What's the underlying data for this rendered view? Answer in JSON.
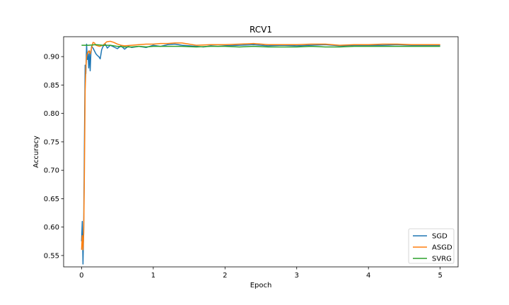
{
  "chart_data": {
    "type": "line",
    "title": "RCV1",
    "xlabel": "Epoch",
    "ylabel": "Accuracy",
    "xlim": [
      -0.25,
      5.25
    ],
    "ylim": [
      0.53,
      0.935
    ],
    "xticks": [
      0,
      1,
      2,
      3,
      4,
      5
    ],
    "yticks": [
      0.55,
      0.6,
      0.65,
      0.7,
      0.75,
      0.8,
      0.85,
      0.9
    ],
    "xtick_labels": [
      "0",
      "1",
      "2",
      "3",
      "4",
      "5"
    ],
    "ytick_labels": [
      "0.55",
      "0.60",
      "0.65",
      "0.70",
      "0.75",
      "0.80",
      "0.85",
      "0.90"
    ],
    "grid": false,
    "legend_position": "lower-right",
    "series": [
      {
        "name": "SGD",
        "color": "#1f77b4",
        "x": [
          0.0,
          0.01,
          0.02,
          0.03,
          0.04,
          0.05,
          0.06,
          0.07,
          0.08,
          0.09,
          0.1,
          0.11,
          0.12,
          0.13,
          0.14,
          0.16,
          0.18,
          0.2,
          0.22,
          0.24,
          0.26,
          0.28,
          0.3,
          0.33,
          0.36,
          0.4,
          0.45,
          0.5,
          0.55,
          0.6,
          0.65,
          0.7,
          0.8,
          0.9,
          1.0,
          1.1,
          1.2,
          1.3,
          1.4,
          1.5,
          1.6,
          1.7,
          1.8,
          1.9,
          2.0,
          2.2,
          2.4,
          2.6,
          2.8,
          3.0,
          3.2,
          3.4,
          3.6,
          3.8,
          4.0,
          4.2,
          4.4,
          4.6,
          4.8,
          5.0
        ],
        "values": [
          0.575,
          0.61,
          0.535,
          0.6,
          0.75,
          0.885,
          0.87,
          0.922,
          0.895,
          0.905,
          0.88,
          0.91,
          0.875,
          0.905,
          0.918,
          0.915,
          0.91,
          0.905,
          0.902,
          0.9,
          0.896,
          0.912,
          0.918,
          0.922,
          0.915,
          0.92,
          0.917,
          0.914,
          0.919,
          0.913,
          0.918,
          0.916,
          0.918,
          0.916,
          0.92,
          0.918,
          0.921,
          0.922,
          0.92,
          0.919,
          0.918,
          0.917,
          0.919,
          0.918,
          0.919,
          0.92,
          0.921,
          0.919,
          0.92,
          0.919,
          0.92,
          0.921,
          0.919,
          0.92,
          0.92,
          0.92,
          0.921,
          0.92,
          0.92,
          0.92
        ]
      },
      {
        "name": "ASGD",
        "color": "#ff7f0e",
        "x": [
          0.0,
          0.01,
          0.02,
          0.03,
          0.04,
          0.05,
          0.06,
          0.07,
          0.08,
          0.1,
          0.12,
          0.14,
          0.16,
          0.18,
          0.2,
          0.25,
          0.3,
          0.35,
          0.4,
          0.45,
          0.5,
          0.55,
          0.6,
          0.7,
          0.8,
          0.9,
          1.0,
          1.1,
          1.2,
          1.3,
          1.4,
          1.5,
          1.6,
          1.8,
          2.0,
          2.2,
          2.4,
          2.6,
          2.8,
          3.0,
          3.2,
          3.4,
          3.6,
          3.8,
          4.0,
          4.2,
          4.4,
          4.6,
          4.8,
          5.0
        ],
        "values": [
          0.56,
          0.585,
          0.56,
          0.59,
          0.7,
          0.84,
          0.88,
          0.9,
          0.905,
          0.91,
          0.905,
          0.915,
          0.925,
          0.924,
          0.92,
          0.918,
          0.92,
          0.926,
          0.927,
          0.925,
          0.922,
          0.92,
          0.919,
          0.92,
          0.921,
          0.922,
          0.922,
          0.923,
          0.923,
          0.924,
          0.924,
          0.922,
          0.92,
          0.921,
          0.921,
          0.922,
          0.923,
          0.921,
          0.921,
          0.921,
          0.922,
          0.922,
          0.92,
          0.921,
          0.921,
          0.922,
          0.922,
          0.921,
          0.921,
          0.921
        ]
      },
      {
        "name": "SVRG",
        "color": "#2ca02c",
        "x": [
          0.0,
          0.05,
          0.1,
          0.2,
          0.3,
          0.4,
          0.5,
          0.6,
          0.7,
          0.8,
          0.9,
          1.0,
          1.2,
          1.4,
          1.6,
          1.8,
          2.0,
          2.2,
          2.4,
          2.6,
          2.8,
          3.0,
          3.2,
          3.4,
          3.6,
          3.8,
          4.0,
          4.2,
          4.4,
          4.6,
          4.8,
          5.0
        ],
        "values": [
          0.92,
          0.92,
          0.92,
          0.921,
          0.92,
          0.92,
          0.918,
          0.917,
          0.917,
          0.918,
          0.917,
          0.918,
          0.918,
          0.918,
          0.917,
          0.918,
          0.918,
          0.917,
          0.918,
          0.917,
          0.917,
          0.917,
          0.918,
          0.917,
          0.917,
          0.918,
          0.918,
          0.918,
          0.918,
          0.918,
          0.918,
          0.918
        ]
      }
    ]
  }
}
